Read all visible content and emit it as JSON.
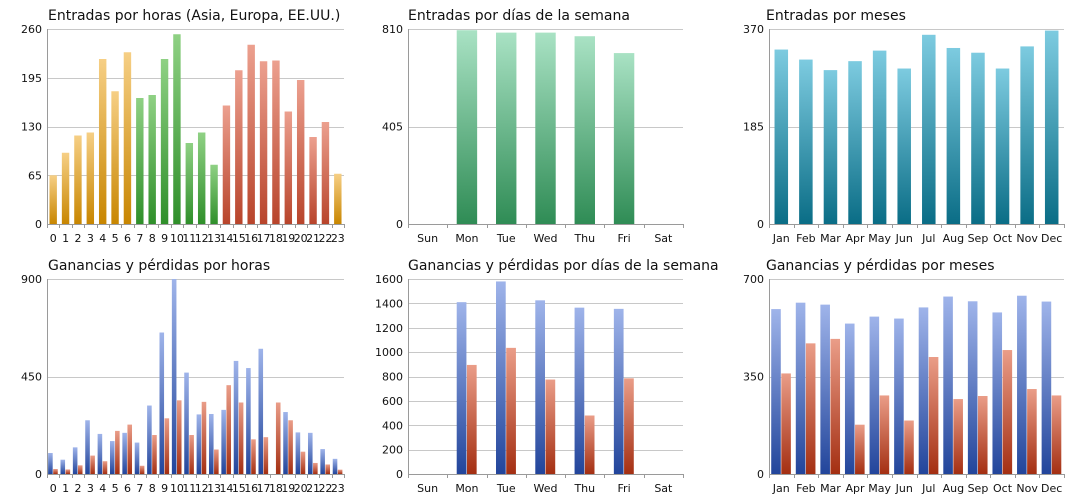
{
  "palette": {
    "orange_top": "#f6cf85",
    "orange_bottom": "#c88600",
    "green_top": "#8fd184",
    "green_bottom": "#2f8f2a",
    "red_top": "#eca08f",
    "red_bottom": "#b8442b",
    "mint_top": "#a9e2c4",
    "mint_bottom": "#2f8c55",
    "teal_top": "#7dcbe0",
    "teal_bottom": "#0a6d86",
    "blue_top": "#9fb4ea",
    "blue_bottom": "#22459b",
    "loss_top": "#ea9d88",
    "loss_bottom": "#a42f12"
  },
  "chart_data": [
    {
      "id": "entries-hours",
      "type": "bar",
      "title": "Entradas por horas (Asia, Europa, EE.UU.)",
      "categories": [
        "0",
        "1",
        "2",
        "3",
        "4",
        "5",
        "6",
        "7",
        "8",
        "9",
        "10",
        "11",
        "12",
        "13",
        "14",
        "15",
        "16",
        "17",
        "18",
        "19",
        "20",
        "21",
        "22",
        "23"
      ],
      "values": [
        65,
        95,
        118,
        122,
        220,
        177,
        229,
        168,
        172,
        220,
        253,
        108,
        122,
        79,
        158,
        205,
        239,
        217,
        218,
        150,
        192,
        116,
        136,
        67
      ],
      "bar_colors": [
        "orange",
        "orange",
        "orange",
        "orange",
        "orange",
        "orange",
        "orange",
        "green",
        "green",
        "green",
        "green",
        "green",
        "green",
        "green",
        "red",
        "red",
        "red",
        "red",
        "red",
        "red",
        "red",
        "red",
        "red",
        "orange"
      ],
      "yticks": [
        0,
        65,
        130,
        195,
        260
      ],
      "ylim": [
        0,
        260
      ],
      "xlabel": "",
      "ylabel": "",
      "grid": true,
      "legend": "none"
    },
    {
      "id": "entries-weekdays",
      "type": "bar",
      "title": "Entradas por días de la semana",
      "categories": [
        "Sun",
        "Mon",
        "Tue",
        "Wed",
        "Thu",
        "Fri",
        "Sat"
      ],
      "values": [
        0,
        805,
        795,
        795,
        780,
        710,
        0
      ],
      "bar_colors": [
        "mint",
        "mint",
        "mint",
        "mint",
        "mint",
        "mint",
        "mint"
      ],
      "yticks": [
        0,
        405,
        810
      ],
      "ylim": [
        0,
        810
      ],
      "xlabel": "",
      "ylabel": "",
      "grid": true,
      "legend": "none"
    },
    {
      "id": "entries-months",
      "type": "bar",
      "title": "Entradas por meses",
      "categories": [
        "Jan",
        "Feb",
        "Mar",
        "Apr",
        "May",
        "Jun",
        "Jul",
        "Aug",
        "Sep",
        "Oct",
        "Nov",
        "Dec"
      ],
      "values": [
        331,
        312,
        292,
        309,
        329,
        295,
        359,
        334,
        325,
        295,
        337,
        367
      ],
      "bar_colors": [
        "teal",
        "teal",
        "teal",
        "teal",
        "teal",
        "teal",
        "teal",
        "teal",
        "teal",
        "teal",
        "teal",
        "teal"
      ],
      "yticks": [
        0,
        185,
        370
      ],
      "ylim": [
        0,
        370
      ],
      "xlabel": "",
      "ylabel": "",
      "grid": true,
      "legend": "none"
    },
    {
      "id": "pnl-hours",
      "type": "bar",
      "title": "Ganancias y pérdidas por horas",
      "categories": [
        "0",
        "1",
        "2",
        "3",
        "4",
        "5",
        "6",
        "7",
        "8",
        "9",
        "10",
        "11",
        "12",
        "13",
        "14",
        "15",
        "16",
        "17",
        "18",
        "19",
        "20",
        "21",
        "22",
        "23"
      ],
      "series": [
        {
          "name": "Ganancias",
          "color": "blue",
          "values": [
            97,
            66,
            123,
            248,
            185,
            152,
            190,
            145,
            316,
            653,
            900,
            468,
            275,
            277,
            296,
            522,
            489,
            578,
            0,
            286,
            192,
            190,
            115,
            70
          ]
        },
        {
          "name": "Pérdidas",
          "color": "loss",
          "values": [
            23,
            21,
            40,
            85,
            59,
            199,
            228,
            38,
            180,
            257,
            340,
            180,
            333,
            113,
            410,
            330,
            160,
            170,
            330,
            248,
            103,
            51,
            44,
            20
          ]
        }
      ],
      "yticks": [
        0,
        450,
        900
      ],
      "ylim": [
        0,
        900
      ],
      "xlabel": "",
      "ylabel": "",
      "grid": true,
      "legend": "none"
    },
    {
      "id": "pnl-weekdays",
      "type": "bar",
      "title": "Ganancias y pérdidas por días de la semana",
      "categories": [
        "Sun",
        "Mon",
        "Tue",
        "Wed",
        "Thu",
        "Fri",
        "Sat"
      ],
      "series": [
        {
          "name": "Ganancias",
          "color": "blue",
          "values": [
            0,
            1410,
            1580,
            1425,
            1365,
            1355,
            0
          ]
        },
        {
          "name": "Pérdidas",
          "color": "loss",
          "values": [
            0,
            895,
            1035,
            775,
            480,
            785,
            0
          ]
        }
      ],
      "yticks": [
        0,
        200,
        400,
        600,
        800,
        1000,
        1200,
        1400,
        1600
      ],
      "ylim": [
        0,
        1600
      ],
      "xlabel": "",
      "ylabel": "",
      "grid": true,
      "legend": "none"
    },
    {
      "id": "pnl-months",
      "type": "bar",
      "title": "Ganancias y pérdidas por meses",
      "categories": [
        "Jan",
        "Feb",
        "Mar",
        "Apr",
        "May",
        "Jun",
        "Jul",
        "Aug",
        "Sep",
        "Oct",
        "Nov",
        "Dec"
      ],
      "series": [
        {
          "name": "Ganancias",
          "color": "blue",
          "values": [
            592,
            615,
            608,
            540,
            565,
            558,
            598,
            637,
            620,
            580,
            640,
            619
          ]
        },
        {
          "name": "Pérdidas",
          "color": "loss",
          "values": [
            361,
            469,
            485,
            177,
            282,
            192,
            420,
            269,
            280,
            445,
            305,
            282
          ]
        }
      ],
      "yticks": [
        0,
        350,
        700
      ],
      "ylim": [
        0,
        700
      ],
      "xlabel": "",
      "ylabel": "",
      "grid": true,
      "legend": "none"
    }
  ]
}
